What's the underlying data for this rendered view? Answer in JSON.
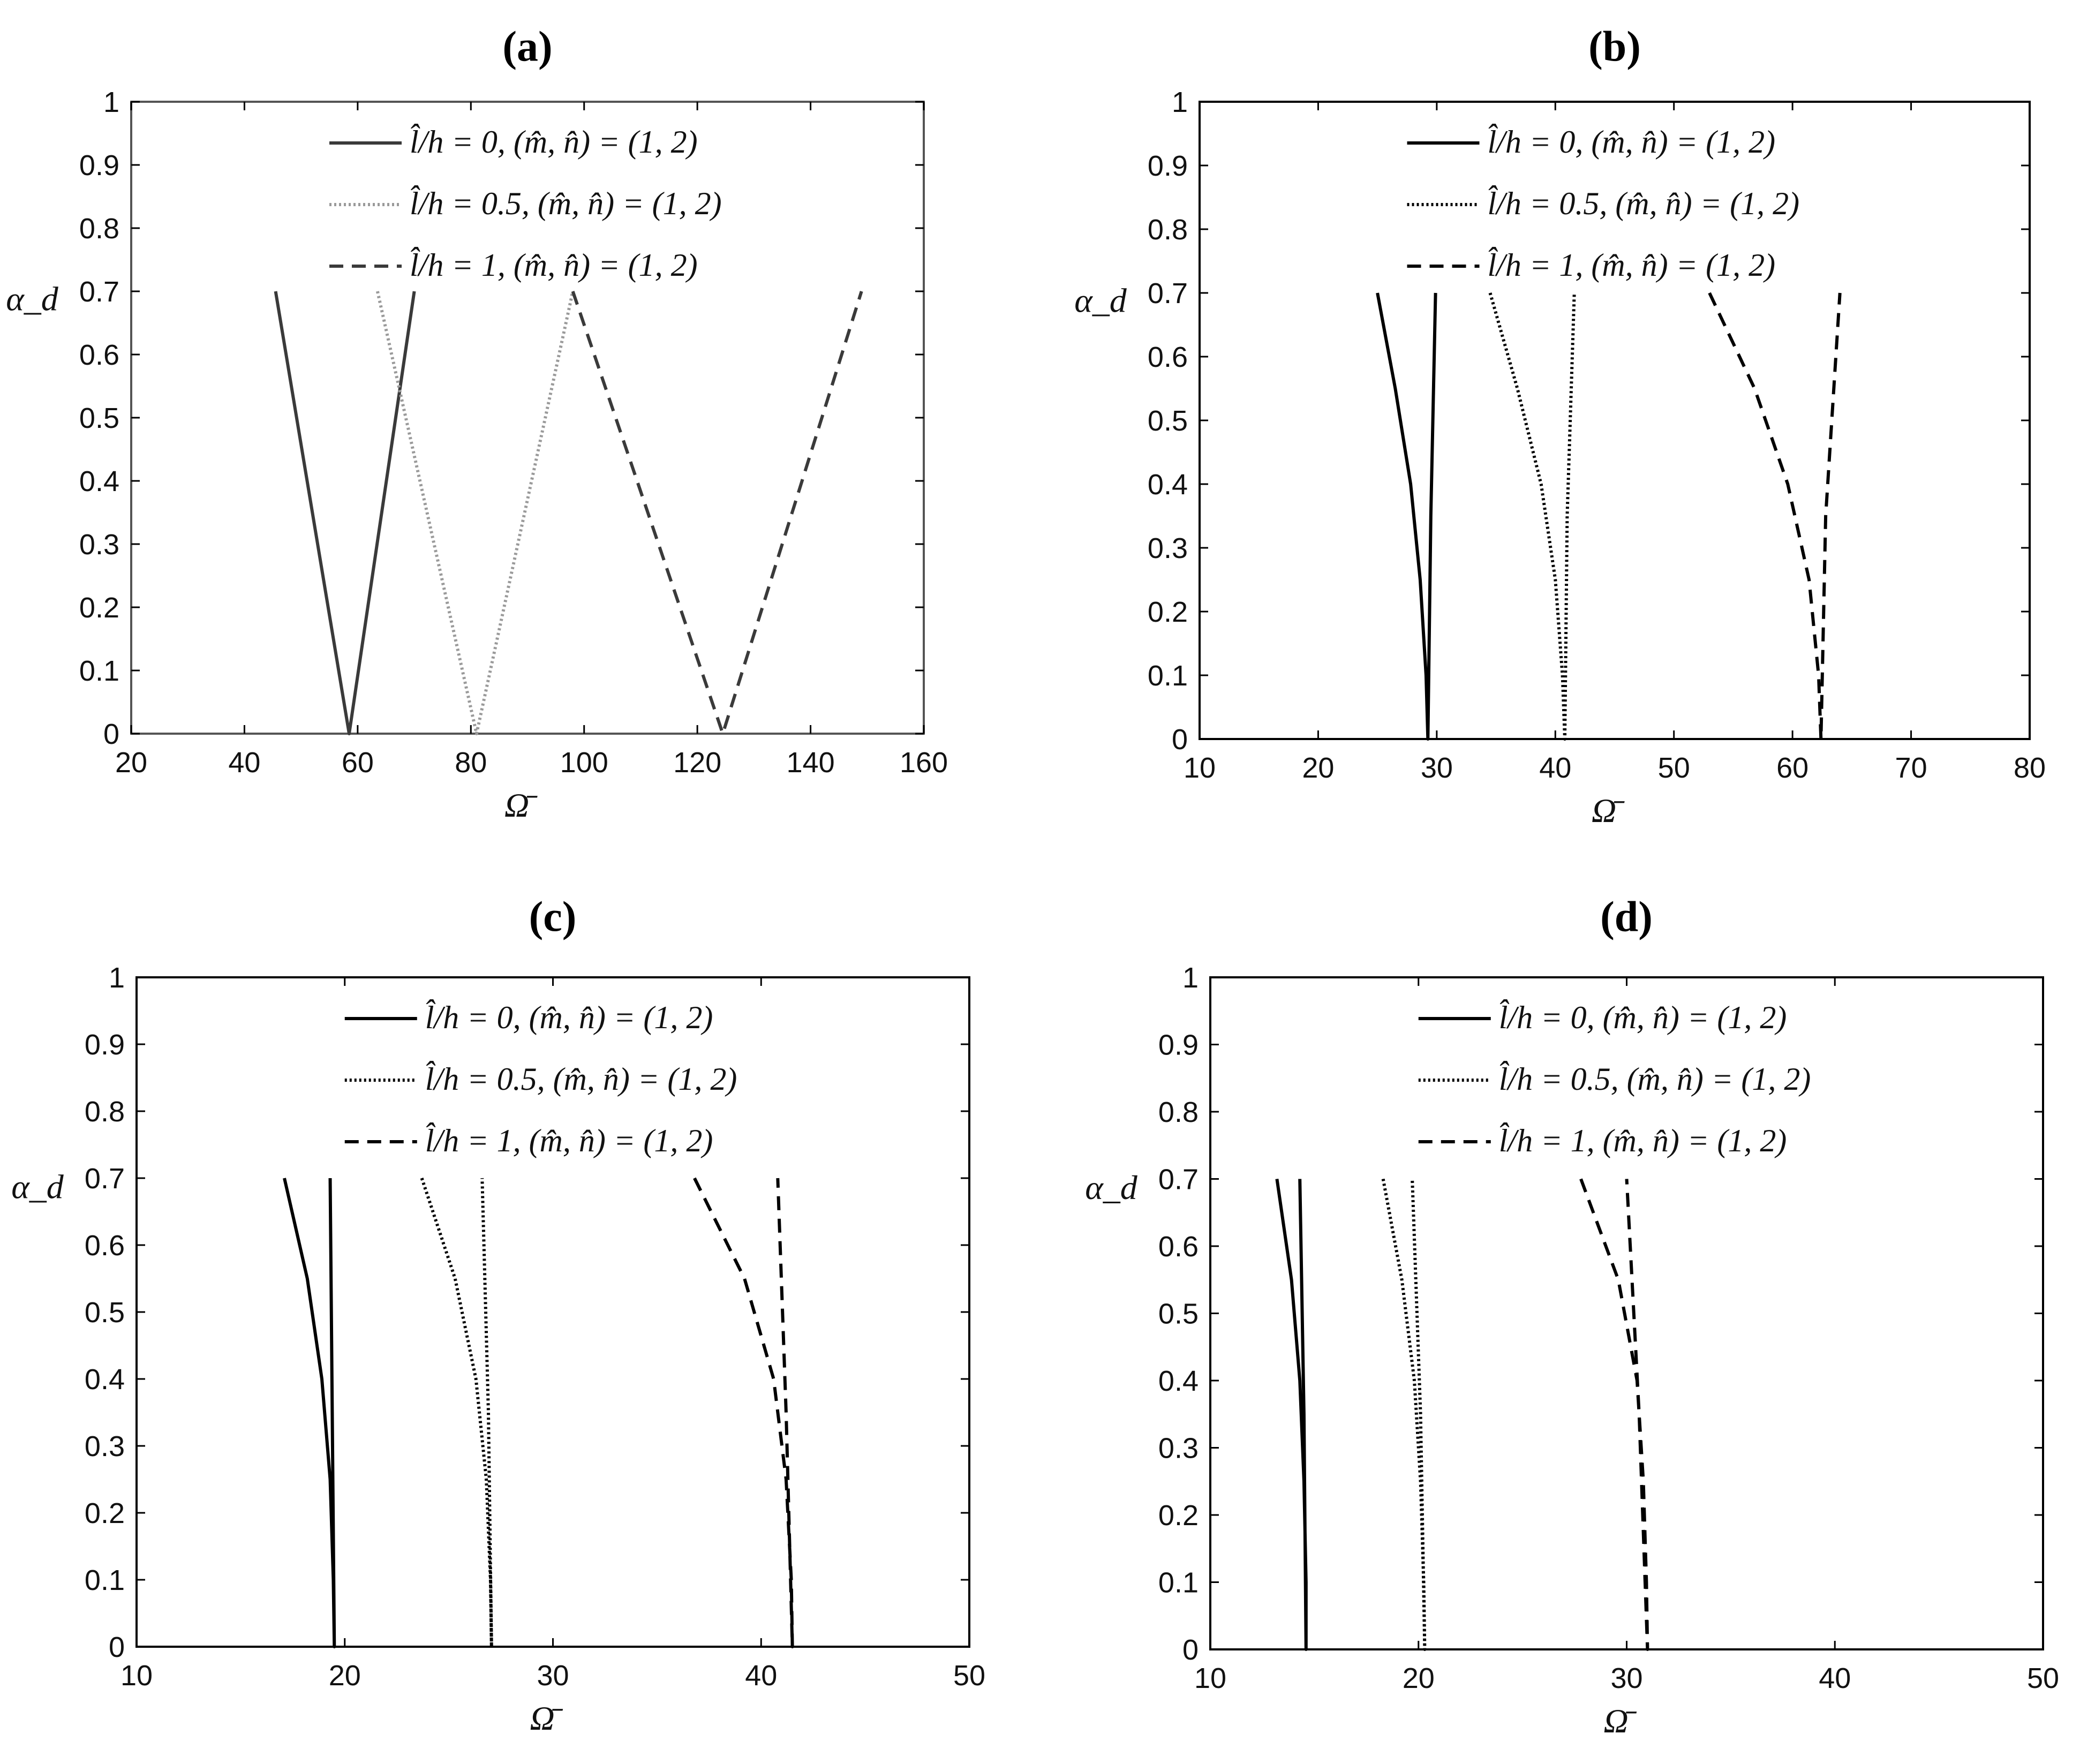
{
  "chart_data": [
    {
      "id": "a",
      "panel_label": "(a)",
      "type": "line",
      "xlabel": "Ω̄",
      "ylabel": "α_d",
      "xlim": [
        20,
        160
      ],
      "ylim": [
        0,
        1
      ],
      "xticks": [
        20,
        40,
        60,
        80,
        100,
        120,
        140,
        160
      ],
      "yticks": [
        0,
        0.1,
        0.2,
        0.3,
        0.4,
        0.5,
        0.6,
        0.7,
        0.8,
        0.9,
        1
      ],
      "grid": false,
      "legend_position": "top-center",
      "colors": [
        "#3a3a3a",
        "#9a9a9a",
        "#3a3a3a"
      ],
      "series": [
        {
          "name": "l̂/h = 0, (m̂, n̂) = (1, 2)",
          "style": "solid",
          "x": [
            45.5,
            58.5,
            70
          ],
          "y": [
            0.7,
            0,
            0.7
          ]
        },
        {
          "name": "l̂/h = 0.5, (m̂, n̂) = (1, 2)",
          "style": "dotted",
          "x": [
            63.5,
            81,
            98
          ],
          "y": [
            0.7,
            0,
            0.7
          ]
        },
        {
          "name": "l̂/h = 1, (m̂, n̂) = (1, 2)",
          "style": "dashed",
          "x": [
            98,
            124.5,
            149
          ],
          "y": [
            0.7,
            0,
            0.7
          ]
        }
      ]
    },
    {
      "id": "b",
      "panel_label": "(b)",
      "type": "line",
      "xlabel": "Ω̄",
      "ylabel": "α_d",
      "xlim": [
        10,
        80
      ],
      "ylim": [
        0,
        1
      ],
      "xticks": [
        10,
        20,
        30,
        40,
        50,
        60,
        70,
        80
      ],
      "yticks": [
        0,
        0.1,
        0.2,
        0.3,
        0.4,
        0.5,
        0.6,
        0.7,
        0.8,
        0.9,
        1
      ],
      "grid": false,
      "legend_position": "top-center",
      "colors": [
        "#000000",
        "#000000",
        "#000000"
      ],
      "series": [
        {
          "name": "l̂/h = 0, (m̂, n̂) = (1, 2)",
          "style": "solid",
          "x": [
            25,
            26.5,
            27.8,
            28.6,
            29.1,
            29.25,
            29.5,
            29.9
          ],
          "y": [
            0.7,
            0.55,
            0.4,
            0.25,
            0.1,
            0,
            0.35,
            0.7
          ]
        },
        {
          "name": "l̂/h = 0.5, (m̂, n̂) = (1, 2)",
          "style": "dotted",
          "x": [
            34.5,
            36.8,
            38.8,
            40.0,
            40.6,
            40.8,
            41.0,
            41.6
          ],
          "y": [
            0.7,
            0.55,
            0.4,
            0.25,
            0.1,
            0,
            0.35,
            0.7
          ]
        },
        {
          "name": "l̂/h = 1, (m̂, n̂) = (1, 2)",
          "style": "dashed",
          "x": [
            53,
            56.8,
            59.6,
            61.4,
            62.2,
            62.4,
            62.8,
            64
          ],
          "y": [
            0.7,
            0.55,
            0.4,
            0.25,
            0.1,
            0,
            0.35,
            0.7
          ]
        }
      ]
    },
    {
      "id": "c",
      "panel_label": "(c)",
      "type": "line",
      "xlabel": "Ω̄",
      "ylabel": "α_d",
      "xlim": [
        10,
        50
      ],
      "ylim": [
        0,
        1
      ],
      "xticks": [
        10,
        20,
        30,
        40,
        50
      ],
      "yticks": [
        0,
        0.1,
        0.2,
        0.3,
        0.4,
        0.5,
        0.6,
        0.7,
        0.8,
        0.9,
        1
      ],
      "grid": false,
      "legend_position": "top-center",
      "colors": [
        "#000000",
        "#000000",
        "#000000"
      ],
      "series": [
        {
          "name": "l̂/h = 0, (m̂, n̂) = (1, 2)",
          "style": "solid",
          "x": [
            17.1,
            18.2,
            18.9,
            19.3,
            19.45,
            19.5,
            19.4,
            19.3
          ],
          "y": [
            0.7,
            0.55,
            0.4,
            0.25,
            0.1,
            0,
            0.35,
            0.7
          ]
        },
        {
          "name": "l̂/h = 0.5, (m̂, n̂) = (1, 2)",
          "style": "dotted",
          "x": [
            23.7,
            25.3,
            26.3,
            26.8,
            27.0,
            27.05,
            26.9,
            26.6
          ],
          "y": [
            0.7,
            0.55,
            0.4,
            0.25,
            0.1,
            0,
            0.35,
            0.7
          ]
        },
        {
          "name": "l̂/h = 1, (m̂, n̂) = (1, 2)",
          "style": "dashed",
          "x": [
            36.8,
            39.2,
            40.6,
            41.2,
            41.45,
            41.5,
            41.2,
            40.8
          ],
          "y": [
            0.7,
            0.55,
            0.4,
            0.25,
            0.1,
            0,
            0.35,
            0.7
          ]
        }
      ]
    },
    {
      "id": "d",
      "panel_label": "(d)",
      "type": "line",
      "xlabel": "Ω̄",
      "ylabel": "α_d",
      "xlim": [
        10,
        50
      ],
      "ylim": [
        0,
        1
      ],
      "xticks": [
        10,
        20,
        30,
        40,
        50
      ],
      "yticks": [
        0,
        0.1,
        0.2,
        0.3,
        0.4,
        0.5,
        0.6,
        0.7,
        0.8,
        0.9,
        1
      ],
      "grid": false,
      "legend_position": "top-center",
      "colors": [
        "#000000",
        "#000000",
        "#000000"
      ],
      "series": [
        {
          "name": "l̂/h = 0, (m̂, n̂) = (1, 2)",
          "style": "solid",
          "x": [
            13.2,
            13.9,
            14.3,
            14.5,
            14.6,
            14.6,
            14.5,
            14.3
          ],
          "y": [
            0.7,
            0.55,
            0.4,
            0.25,
            0.1,
            0,
            0.35,
            0.7
          ]
        },
        {
          "name": "l̂/h = 0.5, (m̂, n̂) = (1, 2)",
          "style": "dotted",
          "x": [
            18.3,
            19.2,
            19.8,
            20.1,
            20.25,
            20.3,
            20.1,
            19.7
          ],
          "y": [
            0.7,
            0.55,
            0.4,
            0.25,
            0.1,
            0,
            0.35,
            0.7
          ]
        },
        {
          "name": "l̂/h = 1, (m̂, n̂) = (1, 2)",
          "style": "dashed",
          "x": [
            27.8,
            29.6,
            30.5,
            30.8,
            30.95,
            31.0,
            30.6,
            30.0
          ],
          "y": [
            0.7,
            0.55,
            0.4,
            0.25,
            0.1,
            0,
            0.35,
            0.7
          ]
        }
      ]
    }
  ]
}
